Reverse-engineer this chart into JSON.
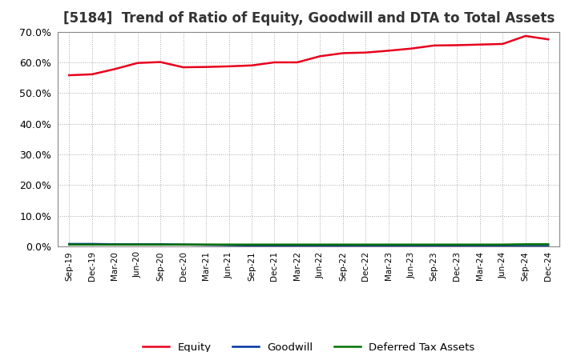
{
  "title": "[5184]  Trend of Ratio of Equity, Goodwill and DTA to Total Assets",
  "x_labels": [
    "Sep-19",
    "Dec-19",
    "Mar-20",
    "Jun-20",
    "Sep-20",
    "Dec-20",
    "Mar-21",
    "Jun-21",
    "Sep-21",
    "Dec-21",
    "Mar-22",
    "Jun-22",
    "Sep-22",
    "Dec-22",
    "Mar-23",
    "Jun-23",
    "Sep-23",
    "Dec-23",
    "Mar-24",
    "Jun-24",
    "Sep-24",
    "Dec-24"
  ],
  "equity": [
    0.558,
    0.561,
    0.578,
    0.598,
    0.601,
    0.584,
    0.585,
    0.587,
    0.59,
    0.6,
    0.6,
    0.62,
    0.63,
    0.632,
    0.638,
    0.645,
    0.655,
    0.656,
    0.658,
    0.66,
    0.686,
    0.675
  ],
  "goodwill": [
    0.008,
    0.008,
    0.007,
    0.007,
    0.007,
    0.006,
    0.005,
    0.004,
    0.003,
    0.003,
    0.002,
    0.002,
    0.002,
    0.001,
    0.001,
    0.001,
    0.001,
    0.001,
    0.001,
    0.001,
    0.001,
    0.001
  ],
  "dta": [
    0.006,
    0.006,
    0.006,
    0.006,
    0.006,
    0.006,
    0.006,
    0.006,
    0.006,
    0.006,
    0.006,
    0.006,
    0.006,
    0.006,
    0.006,
    0.006,
    0.006,
    0.006,
    0.006,
    0.006,
    0.007,
    0.007
  ],
  "equity_color": "#e8001c",
  "goodwill_color": "#0032a0",
  "dta_color": "#007000",
  "ylim": [
    0.0,
    0.7
  ],
  "yticks": [
    0.0,
    0.1,
    0.2,
    0.3,
    0.4,
    0.5,
    0.6,
    0.7
  ],
  "background_color": "#ffffff",
  "plot_bg_color": "#ffffff",
  "grid_color": "#aaaaaa",
  "legend_labels": [
    "Equity",
    "Goodwill",
    "Deferred Tax Assets"
  ],
  "title_fontsize": 12,
  "linewidth": 1.8
}
